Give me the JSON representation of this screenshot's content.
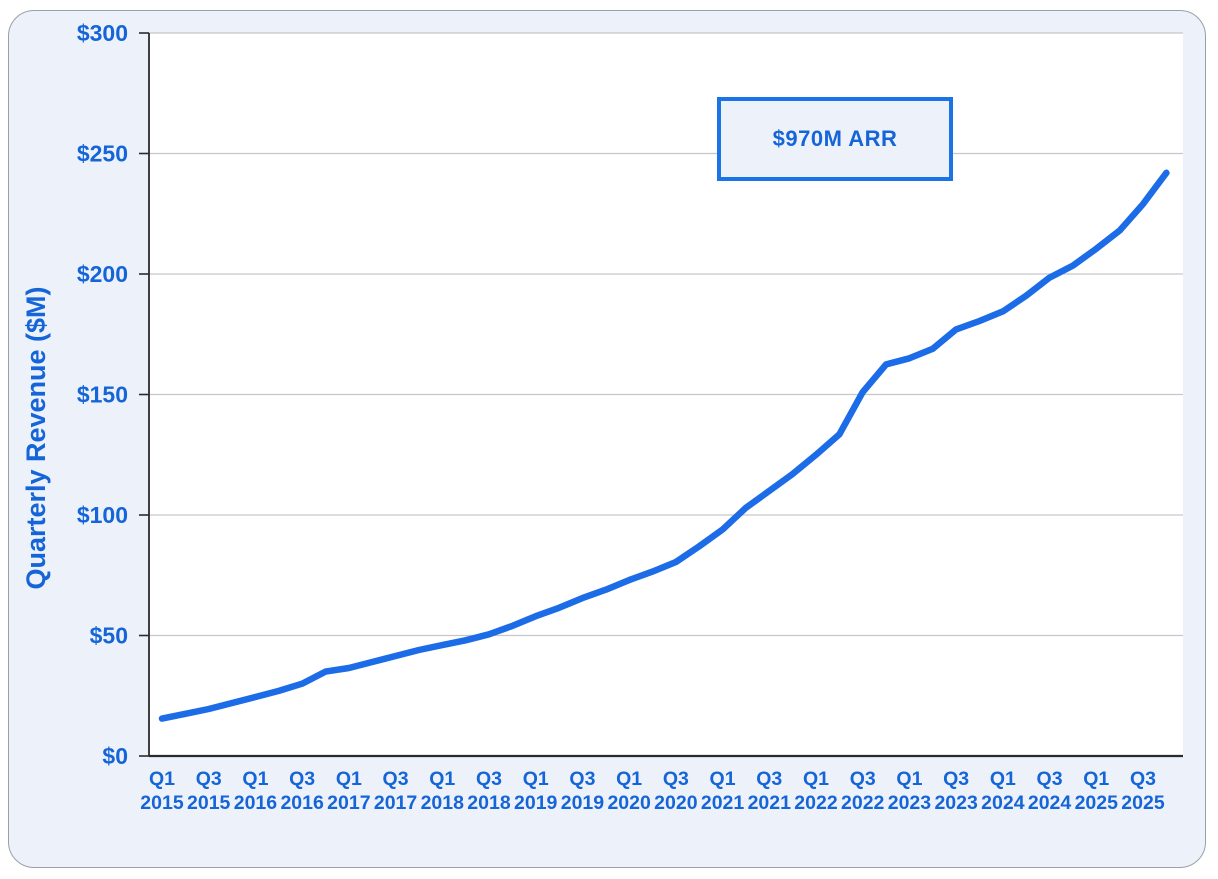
{
  "chart_data": {
    "type": "line",
    "title": "",
    "xlabel": "",
    "ylabel": "Quarterly Revenue ($M)",
    "categories": [
      "Q1 2015",
      "Q2 2015",
      "Q3 2015",
      "Q4 2015",
      "Q1 2016",
      "Q2 2016",
      "Q3 2016",
      "Q4 2016",
      "Q1 2017",
      "Q2 2017",
      "Q3 2017",
      "Q4 2017",
      "Q1 2018",
      "Q2 2018",
      "Q3 2018",
      "Q4 2018",
      "Q1 2019",
      "Q2 2019",
      "Q3 2019",
      "Q4 2019",
      "Q1 2020",
      "Q2 2020",
      "Q3 2020",
      "Q4 2020",
      "Q1 2021",
      "Q2 2021",
      "Q3 2021",
      "Q4 2021",
      "Q1 2022",
      "Q2 2022",
      "Q3 2022",
      "Q4 2022",
      "Q1 2023",
      "Q2 2023",
      "Q3 2023",
      "Q4 2023",
      "Q1 2024",
      "Q2 2024",
      "Q3 2024",
      "Q4 2024",
      "Q1 2025",
      "Q2 2025",
      "Q3 2025",
      "Q4 2025"
    ],
    "values": [
      15.5,
      17.5,
      19.5,
      22,
      24.5,
      27,
      30,
      35,
      36.5,
      39,
      41.5,
      44,
      46,
      48,
      50.5,
      54,
      58,
      61.5,
      65.5,
      69,
      73,
      76.5,
      80.5,
      87,
      94,
      103,
      110,
      117,
      125,
      133.5,
      151,
      162.5,
      165,
      169,
      177,
      180.5,
      184.5,
      191,
      198.5,
      203.5,
      210.5,
      218,
      229,
      242
    ],
    "x_tick_labels": [
      {
        "quarter": "Q1",
        "year": "2015"
      },
      {
        "quarter": "Q3",
        "year": "2015"
      },
      {
        "quarter": "Q1",
        "year": "2016"
      },
      {
        "quarter": "Q3",
        "year": "2016"
      },
      {
        "quarter": "Q1",
        "year": "2017"
      },
      {
        "quarter": "Q3",
        "year": "2017"
      },
      {
        "quarter": "Q1",
        "year": "2018"
      },
      {
        "quarter": "Q3",
        "year": "2018"
      },
      {
        "quarter": "Q1",
        "year": "2019"
      },
      {
        "quarter": "Q3",
        "year": "2019"
      },
      {
        "quarter": "Q1",
        "year": "2020"
      },
      {
        "quarter": "Q3",
        "year": "2020"
      },
      {
        "quarter": "Q1",
        "year": "2021"
      },
      {
        "quarter": "Q3",
        "year": "2021"
      },
      {
        "quarter": "Q1",
        "year": "2022"
      },
      {
        "quarter": "Q3",
        "year": "2022"
      },
      {
        "quarter": "Q1",
        "year": "2023"
      },
      {
        "quarter": "Q3",
        "year": "2023"
      },
      {
        "quarter": "Q1",
        "year": "2024"
      },
      {
        "quarter": "Q3",
        "year": "2024"
      },
      {
        "quarter": "Q1",
        "year": "2025"
      },
      {
        "quarter": "Q3",
        "year": "2025"
      }
    ],
    "x_tick_quarter_step": 2,
    "y_ticks": [
      0,
      50,
      100,
      150,
      200,
      250,
      300
    ],
    "y_tick_labels": [
      "$0",
      "$50",
      "$100",
      "$150",
      "$200",
      "$250",
      "$300"
    ],
    "ylim": [
      0,
      300
    ],
    "grid": true,
    "legend": "none",
    "annotation": "$970M ARR",
    "colors": {
      "line": "#1b6ce6",
      "label_text": "#1565d8",
      "gridline": "#c6c6c6",
      "axis": "#2b2b2b",
      "card_background": "#edf2fa",
      "plot_background": "#ffffff",
      "annotation_border": "#1b74e6"
    }
  },
  "axis": {
    "y_title": "Quarterly Revenue ($M)"
  },
  "annotation": {
    "label": "$970M ARR"
  }
}
